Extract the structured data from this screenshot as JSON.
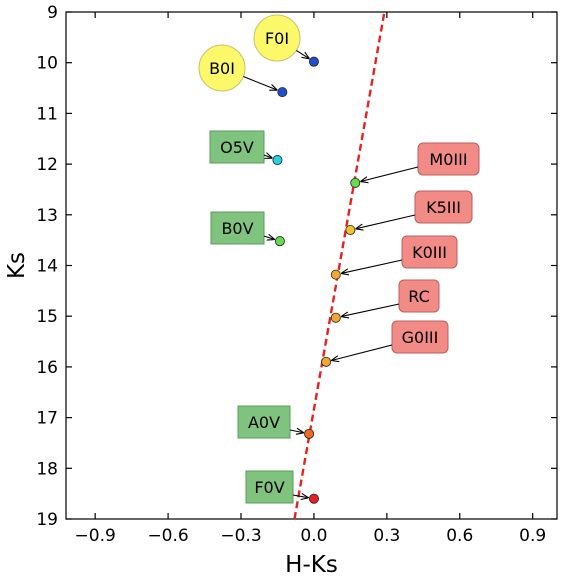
{
  "chart_data": {
    "type": "scatter",
    "xlabel": "H-Ks",
    "ylabel": "Ks",
    "xlim": [
      -1.02,
      1.0
    ],
    "ylim": [
      19,
      9
    ],
    "y_inverted": true,
    "x_ticks": [
      "−0.9",
      "−0.6",
      "−0.3",
      "0.0",
      "0.3",
      "0.6",
      "0.9"
    ],
    "x_tick_values": [
      -0.9,
      -0.6,
      -0.3,
      0.0,
      0.3,
      0.6,
      0.9
    ],
    "y_ticks": [
      "9",
      "10",
      "11",
      "12",
      "13",
      "14",
      "15",
      "16",
      "17",
      "18",
      "19"
    ],
    "y_tick_values": [
      9,
      10,
      11,
      12,
      13,
      14,
      15,
      16,
      17,
      18,
      19
    ],
    "grid": false,
    "reddening_line": {
      "style": "dashed",
      "color": "#e8201f",
      "x": [
        -0.08,
        0.29
      ],
      "y": [
        19.0,
        9.0
      ]
    },
    "points": [
      {
        "label": "F0I",
        "x": 0.0,
        "y": 9.98,
        "color": "#1f4fd1",
        "box_style": "circle",
        "box_color": "#fbf86a"
      },
      {
        "label": "B0I",
        "x": -0.13,
        "y": 10.58,
        "color": "#1f4fd1",
        "box_style": "circle",
        "box_color": "#fbf86a"
      },
      {
        "label": "O5V",
        "x": -0.15,
        "y": 11.92,
        "color": "#22d3e6",
        "box_style": "rect",
        "box_color": "#7fc37f"
      },
      {
        "label": "M0III",
        "x": 0.17,
        "y": 12.37,
        "color": "#63dd4e",
        "box_style": "rounded",
        "box_color": "#f28a86"
      },
      {
        "label": "K5III",
        "x": 0.15,
        "y": 13.3,
        "color": "#f0c330",
        "box_style": "rounded",
        "box_color": "#f28a86"
      },
      {
        "label": "B0V",
        "x": -0.14,
        "y": 13.52,
        "color": "#63dd4e",
        "box_style": "rect",
        "box_color": "#7fc37f"
      },
      {
        "label": "K0III",
        "x": 0.09,
        "y": 14.18,
        "color": "#f0a830",
        "box_style": "rounded",
        "box_color": "#f28a86"
      },
      {
        "label": "RC",
        "x": 0.09,
        "y": 15.03,
        "color": "#f0a830",
        "box_style": "rounded",
        "box_color": "#f28a86"
      },
      {
        "label": "G0III",
        "x": 0.05,
        "y": 15.9,
        "color": "#f0a830",
        "box_style": "rounded",
        "box_color": "#f28a86"
      },
      {
        "label": "A0V",
        "x": -0.02,
        "y": 17.32,
        "color": "#f06a20",
        "box_style": "rect",
        "box_color": "#7fc37f"
      },
      {
        "label": "F0V",
        "x": 0.0,
        "y": 18.6,
        "color": "#e8201f",
        "box_style": "rect",
        "box_color": "#7fc37f"
      }
    ]
  }
}
